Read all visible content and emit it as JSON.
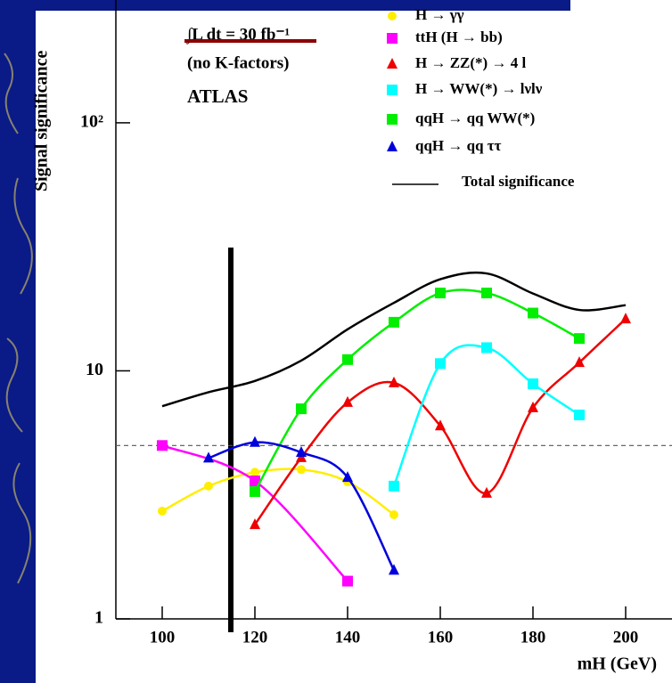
{
  "chart_data": {
    "type": "line",
    "title": "Signal significance",
    "y_label": "Signal significance",
    "x_label": "mH (GeV)",
    "annotations": [
      "∫L dt = 30 fb⁻¹",
      "(no K-factors)",
      "ATLAS"
    ],
    "log_y": true,
    "xlim": [
      90,
      210
    ],
    "xticks": [
      100,
      120,
      140,
      160,
      180,
      200
    ],
    "ylim": [
      1,
      300
    ],
    "yticks": [
      1,
      10,
      {
        "value": 100,
        "label": "10²"
      }
    ],
    "reference_line": 5,
    "legend_position": "upper right",
    "series": [
      {
        "name": "H → γγ",
        "color": "#ffee00",
        "marker": "circle",
        "x": [
          100,
          110,
          120,
          130,
          140,
          150
        ],
        "values": [
          2.72,
          3.43,
          3.9,
          4.0,
          3.57,
          2.63
        ]
      },
      {
        "name": "ttH (H → bb)",
        "color": "#ff00ff",
        "marker": "square",
        "x": [
          100,
          120,
          140
        ],
        "values": [
          5.0,
          3.6,
          1.42
        ]
      },
      {
        "name": "H → ZZ(*) → 4 l",
        "color": "#ee0000",
        "marker": "triangle",
        "x": [
          120,
          130,
          140,
          150,
          160,
          170,
          180,
          190,
          200
        ],
        "values": [
          2.4,
          4.47,
          7.46,
          8.95,
          6.0,
          3.21,
          7.1,
          10.8,
          16.2
        ]
      },
      {
        "name": "H → WW(*) → lνlν",
        "color": "#00ffff",
        "marker": "square",
        "x": [
          150,
          160,
          170,
          180,
          190
        ],
        "values": [
          3.43,
          10.7,
          12.4,
          8.87,
          6.64
        ]
      },
      {
        "name": "qqH → qq WW(*)",
        "color": "#00ee00",
        "marker": "square",
        "x": [
          120,
          130,
          140,
          150,
          160,
          170,
          180,
          190
        ],
        "values": [
          3.26,
          7.03,
          11.1,
          15.7,
          20.6,
          20.6,
          17.1,
          13.5
        ]
      },
      {
        "name": "qqH → qq ττ",
        "color": "#0000dd",
        "marker": "triangle",
        "x": [
          110,
          120,
          130,
          140,
          150
        ],
        "values": [
          4.45,
          5.15,
          4.69,
          3.72,
          1.57
        ]
      },
      {
        "name": "Total significance",
        "color": "#000000",
        "marker": "none",
        "x": [
          100,
          110,
          120,
          130,
          140,
          150,
          160,
          170,
          180,
          190,
          200
        ],
        "values": [
          7.2,
          8.2,
          9.1,
          11.0,
          14.7,
          18.8,
          23.4,
          24.7,
          20.5,
          17.6,
          18.4
        ]
      }
    ]
  }
}
